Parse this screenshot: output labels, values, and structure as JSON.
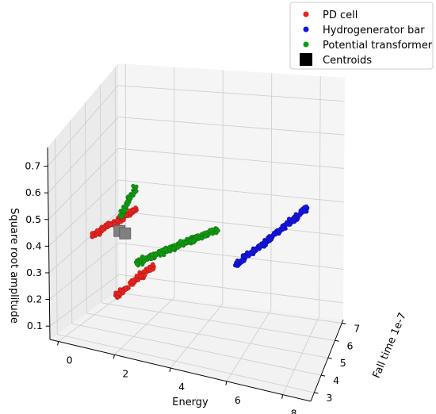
{
  "chart_data": {
    "type": "scatter",
    "projection": "3d",
    "title": "",
    "grid": true,
    "legend_placement": "top-right",
    "axes": {
      "x": {
        "label": "Energy",
        "ticks": [
          "0",
          "2",
          "4",
          "6",
          "8"
        ],
        "range": [
          -0.3,
          9
        ]
      },
      "y": {
        "label": "Fall time 1e-7",
        "ticks": [
          "3",
          "4",
          "5",
          "6",
          "7"
        ],
        "range": [
          2.5,
          7.2
        ]
      },
      "z": {
        "label": "Square root amplitude",
        "ticks": [
          "0.1",
          "0.2",
          "0.3",
          "0.4",
          "0.5",
          "0.6",
          "0.7"
        ],
        "range": [
          0.05,
          0.77
        ]
      }
    },
    "series": [
      {
        "name": "PD cell",
        "color": "#e8231f",
        "clusters": [
          {
            "from": {
              "energy": 0.3,
              "fall_time": 5.9,
              "amplitude": 0.08
            },
            "to": {
              "energy": 2.0,
              "fall_time": 5.6,
              "amplitude": 0.22
            },
            "count": 90
          },
          {
            "from": {
              "energy": 0.8,
              "fall_time": 3.4,
              "amplitude": 0.41
            },
            "to": {
              "energy": 2.6,
              "fall_time": 3.0,
              "amplitude": 0.56
            },
            "count": 140
          }
        ]
      },
      {
        "name": "Hydrogenerator bar",
        "color": "#1414e0",
        "clusters": [
          {
            "from": {
              "energy": 6.3,
              "fall_time": 2.7,
              "amplitude": 0.45
            },
            "to": {
              "energy": 8.6,
              "fall_time": 3.5,
              "amplitude": 0.62
            },
            "count": 220
          }
        ]
      },
      {
        "name": "Potential transformer",
        "color": "#119911",
        "clusters": [
          {
            "from": {
              "energy": 1.8,
              "fall_time": 4.6,
              "amplitude": 0.27
            },
            "to": {
              "energy": 5.2,
              "fall_time": 4.0,
              "amplitude": 0.47
            },
            "count": 260
          },
          {
            "from": {
              "energy": 2.0,
              "fall_time": 3.1,
              "amplitude": 0.52
            },
            "to": {
              "energy": 2.6,
              "fall_time": 3.0,
              "amplitude": 0.64
            },
            "count": 60
          }
        ]
      },
      {
        "name": "Centroids",
        "color": "#808080",
        "marker": "square",
        "points": [
          {
            "energy": 1.6,
            "fall_time": 3.8,
            "amplitude": 0.42
          },
          {
            "energy": 2.0,
            "fall_time": 3.4,
            "amplitude": 0.44
          }
        ]
      }
    ],
    "legend": [
      {
        "label": "PD cell",
        "color": "#e8231f",
        "marker": "circle"
      },
      {
        "label": "Hydrogenerator bar",
        "color": "#1414e0",
        "marker": "circle"
      },
      {
        "label": "Potential transformer",
        "color": "#119911",
        "marker": "circle"
      },
      {
        "label": "Centroids",
        "color": "#000000",
        "marker": "square"
      }
    ]
  }
}
